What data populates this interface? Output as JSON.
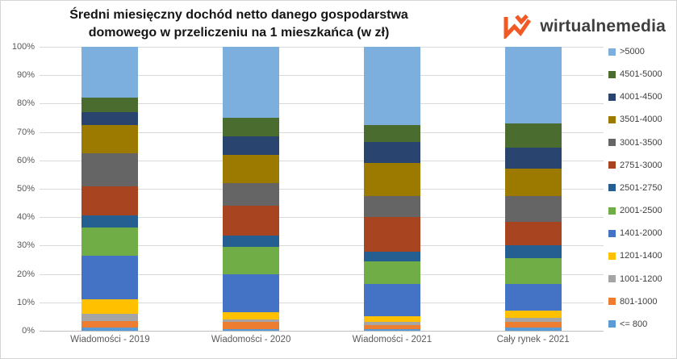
{
  "title": {
    "line1": "Średni miesięczny dochód netto danego gospodarstwa",
    "line2": "domowego w przeliczeniu na 1 mieszkańca (w zł)"
  },
  "logo": {
    "text": "wirtualnemedia",
    "mark_color": "#F15A25",
    "text_color": "#3F3F3F"
  },
  "chart_data": {
    "type": "bar",
    "stacked": true,
    "stacked_100_percent": true,
    "title": "Średni miesięczny dochód netto danego gospodarstwa domowego w przeliczeniu na 1 mieszkańca (w zł)",
    "xlabel": "",
    "ylabel": "",
    "ylim": [
      0,
      100
    ],
    "grid": true,
    "legend_position": "right",
    "y_ticks": [
      "100%",
      "90%",
      "80%",
      "70%",
      "60%",
      "50%",
      "40%",
      "30%",
      "20%",
      "10%",
      "0%"
    ],
    "categories": [
      "Wiadomości - 2019",
      "Wiadomości - 2020",
      "Wiadomości - 2021",
      "Cały rynek - 2021"
    ],
    "series_note": "series listed bottom-to-top of stack; values are percent per category",
    "series": [
      {
        "name": "<= 800",
        "color": "#5B9BD5",
        "values": [
          1.0,
          0.5,
          0.5,
          1.0
        ]
      },
      {
        "name": "801-1000",
        "color": "#ED7D31",
        "values": [
          2.5,
          2.5,
          1.5,
          2.0
        ]
      },
      {
        "name": "1001-1200",
        "color": "#A5A5A5",
        "values": [
          2.5,
          1.0,
          1.0,
          1.5
        ]
      },
      {
        "name": "1201-1400",
        "color": "#FFC000",
        "values": [
          5.0,
          2.5,
          2.0,
          2.5
        ]
      },
      {
        "name": "1401-2000",
        "color": "#4472C4",
        "values": [
          15.5,
          13.5,
          11.5,
          9.5
        ]
      },
      {
        "name": "2001-2500",
        "color": "#70AD47",
        "values": [
          10.0,
          9.5,
          8.0,
          9.0
        ]
      },
      {
        "name": "2501-2750",
        "color": "#255E91",
        "values": [
          4.0,
          4.0,
          3.5,
          4.5
        ]
      },
      {
        "name": "2751-3000",
        "color": "#A8441F",
        "values": [
          10.5,
          10.5,
          12.0,
          8.5
        ]
      },
      {
        "name": "3001-3500",
        "color": "#656565",
        "values": [
          11.5,
          8.0,
          7.5,
          9.0
        ]
      },
      {
        "name": "3501-4000",
        "color": "#9C7A00",
        "values": [
          10.0,
          10.0,
          11.5,
          9.5
        ]
      },
      {
        "name": "4001-4500",
        "color": "#2A4470",
        "values": [
          4.5,
          6.5,
          7.5,
          7.5
        ]
      },
      {
        "name": "4501-5000",
        "color": "#4A6C2E",
        "values": [
          5.0,
          6.5,
          6.0,
          8.5
        ]
      },
      {
        "name": ">5000",
        "color": "#7CAFDE",
        "values": [
          18.0,
          25.0,
          27.5,
          27.0
        ]
      }
    ]
  }
}
